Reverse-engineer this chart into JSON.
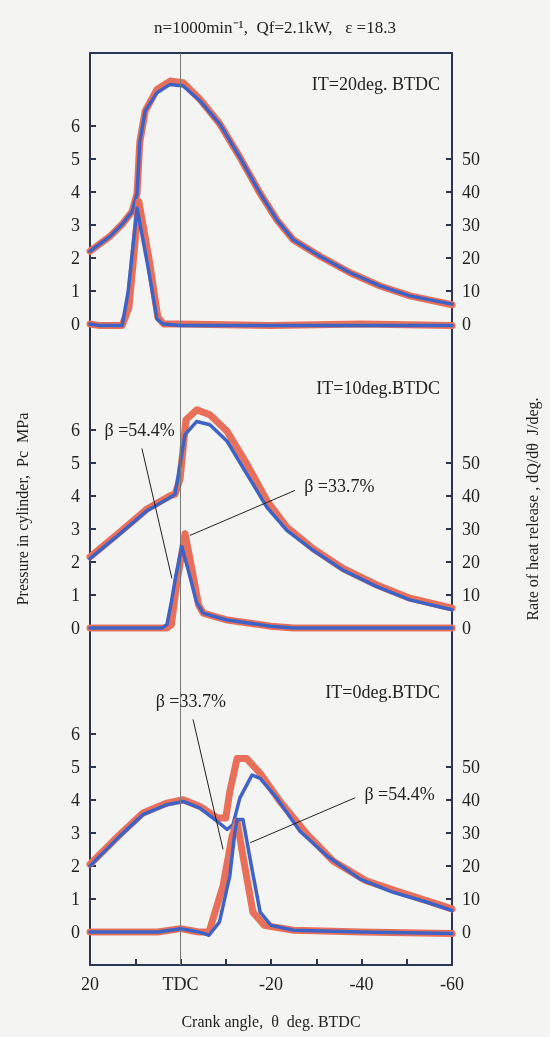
{
  "chart_data": [
    {
      "type": "line",
      "title": "n=1000min⁻¹,  Qf=2.1kW,   ε =18.3",
      "xlim": [
        20,
        -60
      ],
      "ylim": [
        -1,
        8.2
      ],
      "yticks": [
        0,
        1,
        2,
        3,
        4,
        5,
        6
      ],
      "y2lim": [
        -10,
        82
      ],
      "y2ticks": [
        0,
        10,
        20,
        30,
        40,
        50
      ],
      "tick_labels": "y",
      "marker": "none",
      "line_style": "solid",
      "ref_lines": [
        {
          "axis": "x",
          "value": 0
        }
      ],
      "annotations": [
        "IT=20deg. BTDC"
      ],
      "series": [
        {
          "color": "#e8705a",
          "x": [
            20,
            15.6,
            12.7,
            10.7,
            9.6,
            9,
            7.8,
            5.2,
            2.3,
            -0.6,
            -4.3,
            -8.7,
            -13.1,
            -17.6,
            -21.3,
            -24.9,
            -30.8,
            -37.5,
            -44.1,
            -50.7,
            -60
          ],
          "values": [
            2.2,
            2.65,
            3.05,
            3.4,
            3.95,
            5.5,
            6.45,
            7.1,
            7.35,
            7.3,
            6.8,
            6.05,
            5.05,
            3.95,
            3.15,
            2.55,
            2.05,
            1.55,
            1.15,
            0.85,
            0.58
          ]
        },
        {
          "color": "#3f63c4",
          "x": [
            20,
            15.6,
            12.7,
            10.7,
            9.6,
            9,
            7.8,
            5.2,
            2.3,
            -0.6,
            -4.3,
            -8.7,
            -13.1,
            -17.6,
            -21.3,
            -24.9,
            -30.8,
            -37.5,
            -44.1,
            -50.7,
            -60
          ],
          "values": [
            2.2,
            2.65,
            3.05,
            3.4,
            3.95,
            5.5,
            6.45,
            7.0,
            7.25,
            7.2,
            6.75,
            6.05,
            5.05,
            3.95,
            3.15,
            2.55,
            2.05,
            1.55,
            1.15,
            0.85,
            0.6
          ]
        },
        {
          "color": "#e8705a",
          "axis": "y2",
          "x": [
            20,
            17.8,
            12.9,
            11.4,
            9.2,
            7,
            5,
            3.7,
            0,
            -20,
            -40,
            -60
          ],
          "values": [
            0,
            -0.5,
            -0.5,
            5,
            37,
            20,
            2,
            0,
            0,
            -0.5,
            0,
            -0.5
          ]
        },
        {
          "color": "#3f63c4",
          "axis": "y2",
          "x": [
            20,
            17.8,
            12.9,
            11.6,
            9.6,
            7.2,
            5.2,
            3.9,
            0,
            -20,
            -40,
            -60
          ],
          "values": [
            0,
            -0.5,
            -0.5,
            9.5,
            35,
            17.4,
            1.5,
            0,
            -0.5,
            -0.5,
            -0.5,
            -0.5
          ]
        }
      ]
    },
    {
      "type": "line",
      "ylabel": "Pressure in cylinder,  Pc  MPa",
      "y2label": "Rate of heat release , dQ/dθ  J/deg.",
      "xlim": [
        20,
        -60
      ],
      "ylim": [
        -1,
        8.2
      ],
      "yticks": [
        0,
        1,
        2,
        3,
        4,
        5,
        6
      ],
      "y2lim": [
        -10,
        82
      ],
      "y2ticks": [
        0,
        10,
        20,
        30,
        40,
        50
      ],
      "tick_labels": "y",
      "marker": "none",
      "line_style": "solid",
      "ref_lines": [
        {
          "axis": "x",
          "value": 0
        }
      ],
      "annotations": [
        "IT=10deg.BTDC",
        {
          "text": "β =54.4%",
          "x": 1.9,
          "y": 1.5
        },
        {
          "text": "β =33.7%",
          "x": -2.1,
          "y": 2.8
        }
      ],
      "series": [
        {
          "color": "#e8705a",
          "x": [
            20,
            13.4,
            7.4,
            2.3,
            1.2,
            0.1,
            -1.2,
            -3.6,
            -6.5,
            -10.3,
            -14.7,
            -19.1,
            -23.5,
            -29.3,
            -35.9,
            -43.4,
            -50.7,
            -60
          ],
          "values": [
            2.15,
            2.9,
            3.6,
            4.0,
            4.05,
            4.5,
            6.3,
            6.6,
            6.45,
            5.95,
            4.95,
            3.85,
            3.05,
            2.4,
            1.8,
            1.3,
            0.9,
            0.6
          ]
        },
        {
          "color": "#3f63c4",
          "x": [
            20,
            13.4,
            7.4,
            2.3,
            1.2,
            0.1,
            -1,
            -3.6,
            -6.5,
            -10.3,
            -14.7,
            -19.1,
            -23.5,
            -29.3,
            -35.9,
            -43.4,
            -50.7,
            -60
          ],
          "values": [
            2.1,
            2.85,
            3.55,
            3.95,
            4.05,
            4.95,
            5.85,
            6.25,
            6.15,
            5.65,
            4.65,
            3.65,
            2.95,
            2.35,
            1.75,
            1.25,
            0.85,
            0.55
          ]
        },
        {
          "color": "#e8705a",
          "axis": "y2",
          "x": [
            20,
            10,
            4,
            3,
            2,
            1,
            -1,
            -2.5,
            -4,
            -5,
            -10,
            -20,
            -25,
            -40,
            -60
          ],
          "values": [
            0,
            0,
            0,
            0,
            1,
            12,
            28.5,
            18,
            7,
            4.5,
            2.5,
            0.5,
            0,
            0,
            0
          ]
        },
        {
          "color": "#3f63c4",
          "axis": "y2",
          "x": [
            20,
            10,
            4,
            3,
            2,
            1,
            -0.3,
            -2,
            -3.5,
            -5,
            -10,
            -20,
            -25,
            -40,
            -60
          ],
          "values": [
            0,
            0,
            0,
            1,
            8,
            16,
            24.6,
            16,
            8,
            4.5,
            2.5,
            0.5,
            0,
            0,
            0
          ]
        }
      ]
    },
    {
      "type": "line",
      "xlabel": "Crank angle,  θ  deg. BTDC",
      "xlim": [
        20,
        -60
      ],
      "xticks": [
        20,
        {
          "value": 10,
          "label": null
        },
        {
          "value": 0,
          "label": "TDC"
        },
        {
          "value": -10,
          "label": null
        },
        -20,
        {
          "value": -30,
          "label": null
        },
        -40,
        {
          "value": -50,
          "label": null
        },
        -60
      ],
      "ylim": [
        -1,
        8.2
      ],
      "yticks": [
        0,
        1,
        2,
        3,
        4,
        5,
        6
      ],
      "y2lim": [
        -10,
        82
      ],
      "y2ticks": [
        0,
        10,
        20,
        30,
        40,
        50
      ],
      "marker": "none",
      "line_style": "solid",
      "ref_lines": [
        {
          "axis": "x",
          "value": 0
        }
      ],
      "annotations": [
        "IT=0deg.BTDC",
        {
          "text": "β =33.7%",
          "x": -9.4,
          "y": 2.5
        },
        {
          "text": "β =54.4%",
          "x": -15.4,
          "y": 2.7
        }
      ],
      "series": [
        {
          "color": "#e8705a",
          "x": [
            20,
            13.4,
            8.3,
            3,
            -0.6,
            -4.3,
            -8.1,
            -10,
            -10.9,
            -12.5,
            -14.6,
            -17.6,
            -22,
            -28,
            -33.7,
            -41,
            -48.6,
            -60
          ],
          "values": [
            2.05,
            2.95,
            3.6,
            3.9,
            4.0,
            3.8,
            3.45,
            3.45,
            4.25,
            5.25,
            5.25,
            4.8,
            3.95,
            2.95,
            2.15,
            1.55,
            1.2,
            0.7
          ]
        },
        {
          "color": "#3f63c4",
          "x": [
            20,
            13.4,
            8.3,
            3,
            -0.6,
            -4.3,
            -8.1,
            -10.3,
            -11.6,
            -13.1,
            -15.8,
            -17.6,
            -21.3,
            -26.4,
            -32.4,
            -39.7,
            -47,
            -54.5,
            -60
          ],
          "values": [
            2.0,
            2.9,
            3.55,
            3.85,
            3.95,
            3.75,
            3.35,
            3.1,
            3.25,
            4.05,
            4.75,
            4.65,
            4.05,
            3.05,
            2.3,
            1.6,
            1.2,
            0.9,
            0.65
          ]
        },
        {
          "color": "#e8705a",
          "axis": "y2",
          "x": [
            20,
            5,
            0,
            -4,
            -6.3,
            -9.4,
            -11.4,
            -12.5,
            -13.8,
            -16,
            -18.5,
            -25,
            -40,
            -60
          ],
          "values": [
            0,
            0,
            1,
            0,
            0,
            14,
            29,
            33.5,
            23,
            6,
            2,
            0.5,
            0,
            -0.5
          ]
        },
        {
          "color": "#3f63c4",
          "axis": "y2",
          "x": [
            20,
            5,
            0,
            -4,
            -6.3,
            -8.6,
            -10.9,
            -12,
            -12.5,
            -13.8,
            -15.8,
            -17.6,
            -20,
            -25,
            -40,
            -60
          ],
          "values": [
            0,
            0,
            1,
            0,
            -1,
            3,
            17,
            30,
            34,
            34,
            19,
            6,
            2,
            0.5,
            0,
            -0.5
          ]
        }
      ]
    }
  ]
}
